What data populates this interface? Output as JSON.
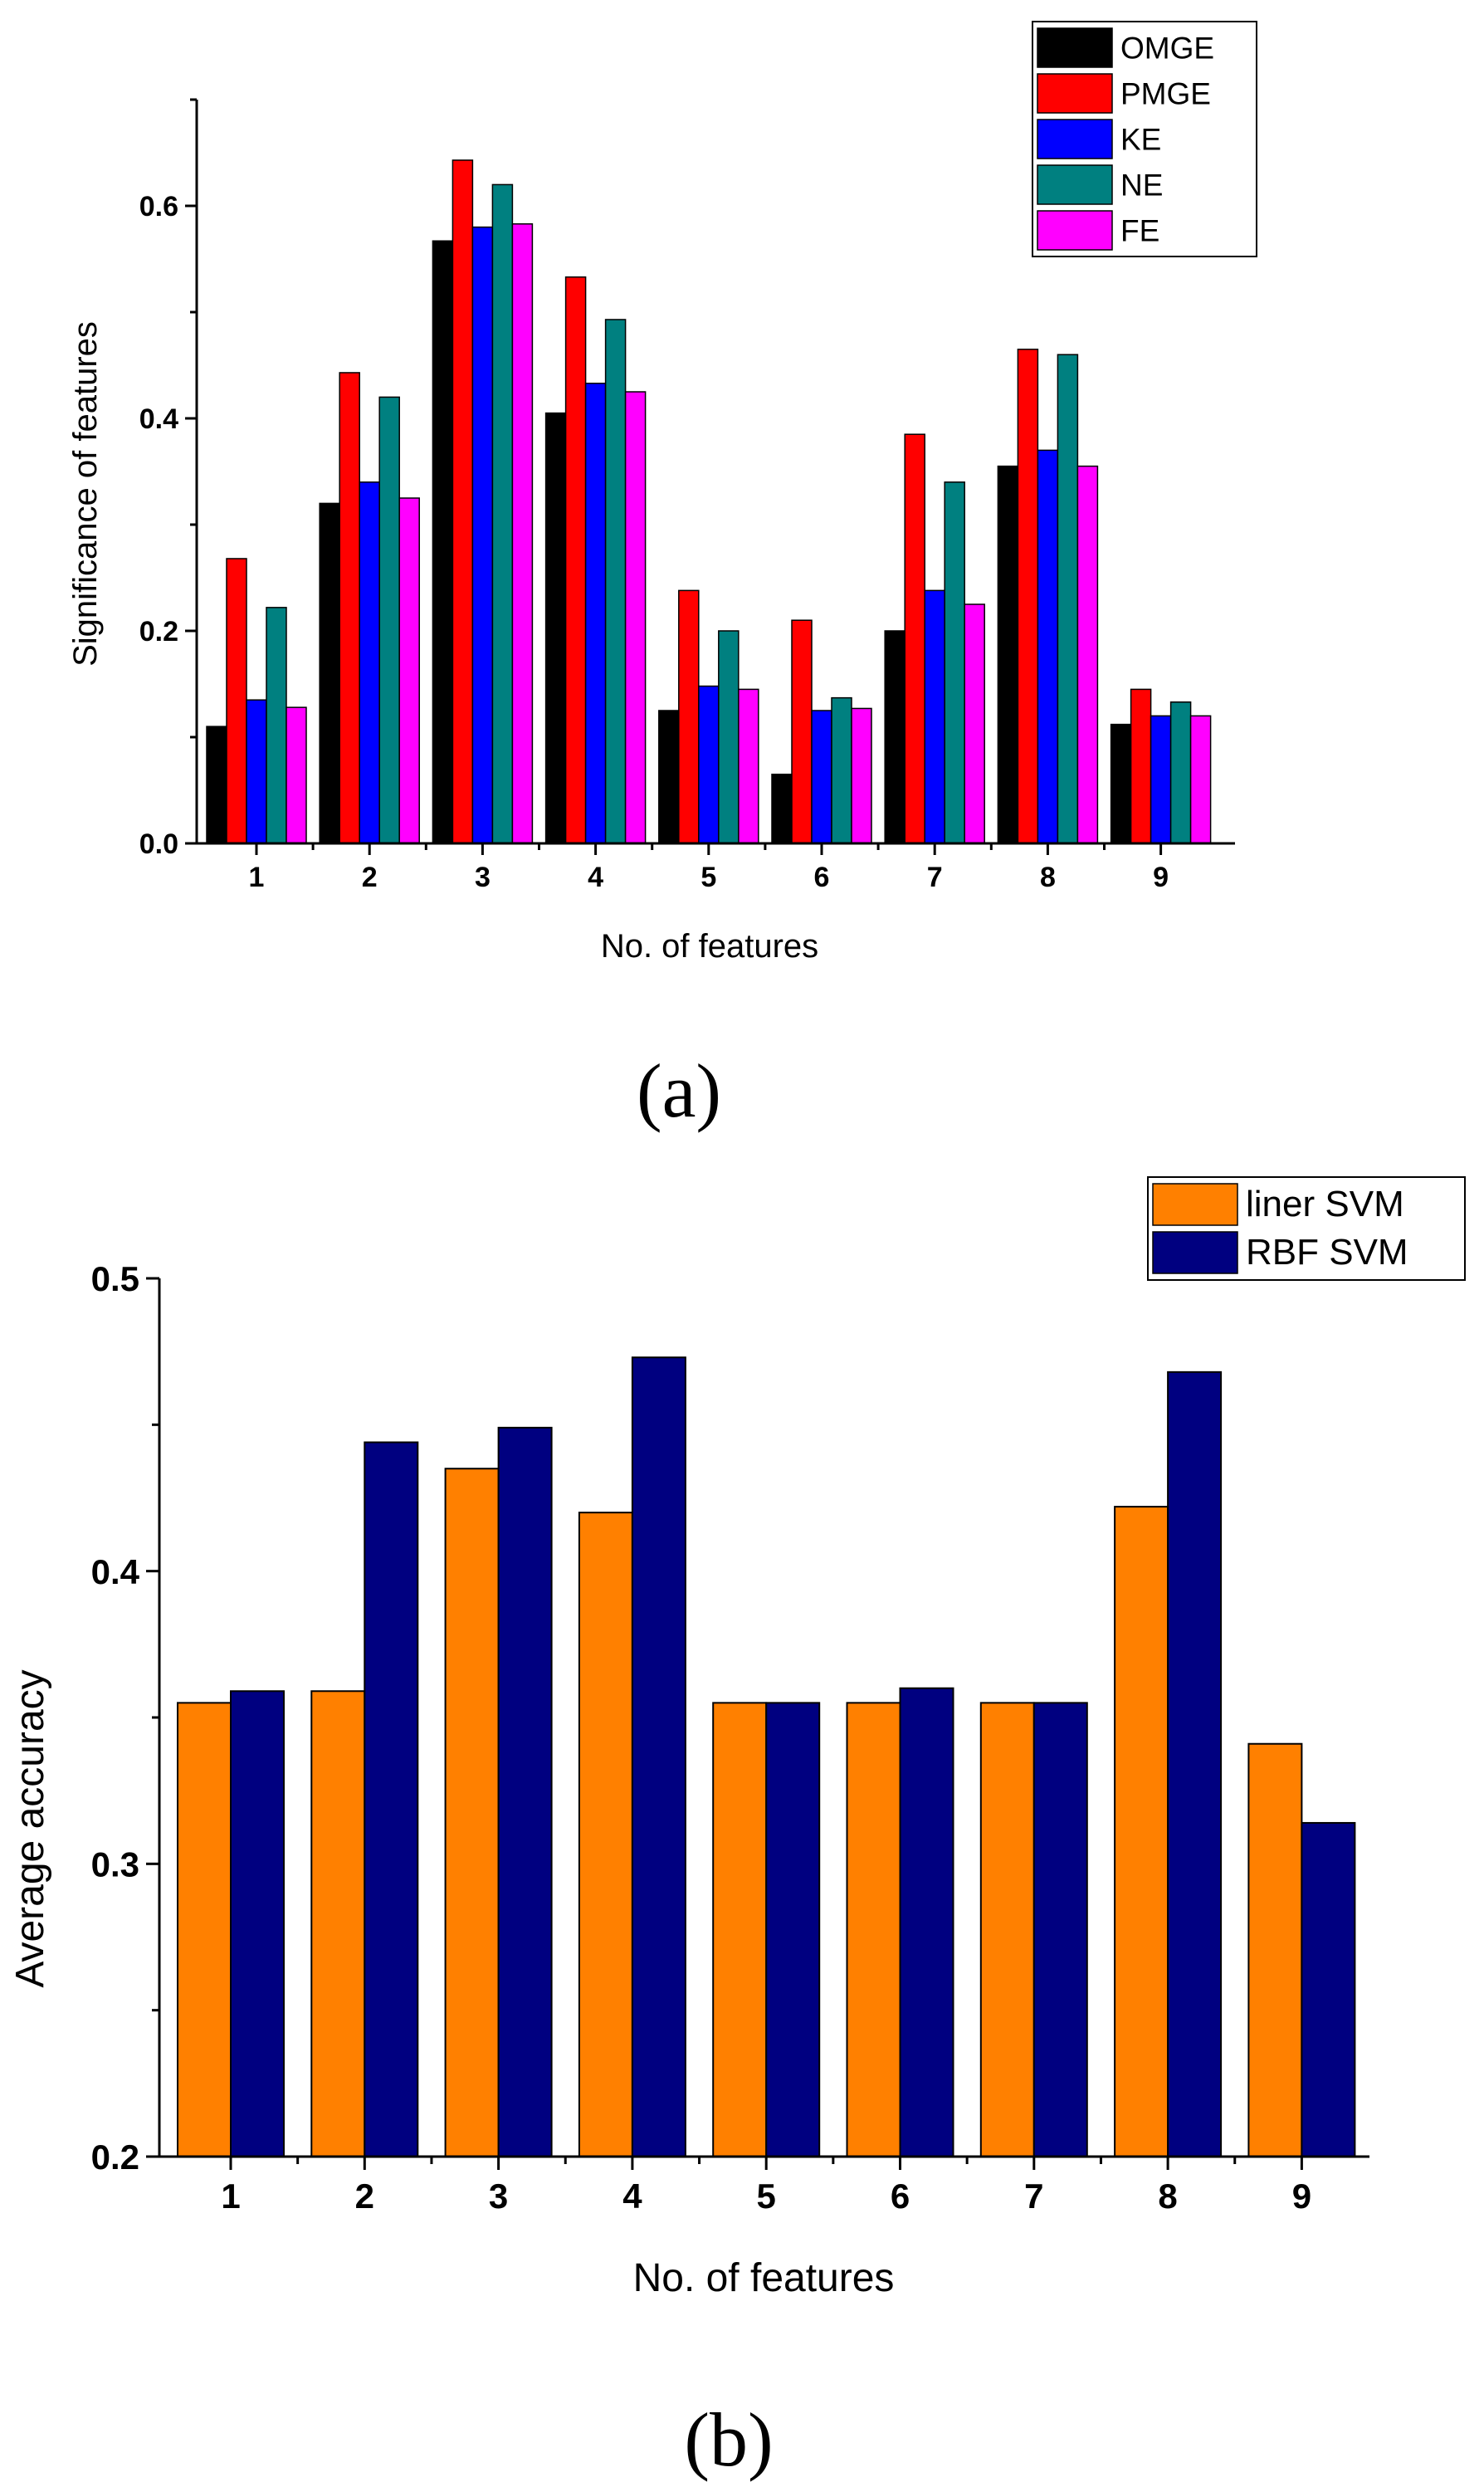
{
  "colors": {
    "OMGE": "#000000",
    "PMGE": "#ff0000",
    "KE": "#0000ff",
    "NE": "#008080",
    "FE": "#ff00ff",
    "liner": "#ff8000",
    "rbf": "#000080"
  },
  "chart_data": [
    {
      "type": "bar",
      "panel_label": "(a)",
      "xlabel": "No. of features",
      "ylabel": "Significance of features",
      "ylim": [
        0,
        0.7
      ],
      "yticks": [
        "0.0",
        "0.2",
        "0.4",
        "0.6"
      ],
      "categories": [
        "1",
        "2",
        "3",
        "4",
        "5",
        "6",
        "7",
        "8",
        "9"
      ],
      "legend_position": "top-right",
      "series": [
        {
          "name": "OMGE",
          "color_key": "OMGE",
          "values": [
            0.11,
            0.32,
            0.567,
            0.405,
            0.125,
            0.065,
            0.2,
            0.355,
            0.112
          ]
        },
        {
          "name": "PMGE",
          "color_key": "PMGE",
          "values": [
            0.268,
            0.443,
            0.643,
            0.533,
            0.238,
            0.21,
            0.385,
            0.465,
            0.145
          ]
        },
        {
          "name": "KE",
          "color_key": "KE",
          "values": [
            0.135,
            0.34,
            0.58,
            0.433,
            0.148,
            0.125,
            0.238,
            0.37,
            0.12
          ]
        },
        {
          "name": "NE",
          "color_key": "NE",
          "values": [
            0.222,
            0.42,
            0.62,
            0.493,
            0.2,
            0.137,
            0.34,
            0.46,
            0.133
          ]
        },
        {
          "name": "FE",
          "color_key": "FE",
          "values": [
            0.128,
            0.325,
            0.583,
            0.425,
            0.145,
            0.127,
            0.225,
            0.355,
            0.12
          ]
        }
      ]
    },
    {
      "type": "bar",
      "panel_label": "(b)",
      "xlabel": "No. of features",
      "ylabel": "Average accuracy",
      "ylim": [
        0.2,
        0.5
      ],
      "yticks": [
        "0.2",
        "0.3",
        "0.4",
        "0.5"
      ],
      "categories": [
        "1",
        "2",
        "3",
        "4",
        "5",
        "6",
        "7",
        "8",
        "9"
      ],
      "legend_position": "top-right",
      "series": [
        {
          "name": "liner SVM",
          "color_key": "liner",
          "values": [
            0.355,
            0.359,
            0.435,
            0.42,
            0.355,
            0.355,
            0.355,
            0.422,
            0.341
          ]
        },
        {
          "name": "RBF SVM",
          "color_key": "rbf",
          "values": [
            0.359,
            0.444,
            0.449,
            0.473,
            0.355,
            0.36,
            0.355,
            0.468,
            0.314
          ]
        }
      ]
    }
  ]
}
